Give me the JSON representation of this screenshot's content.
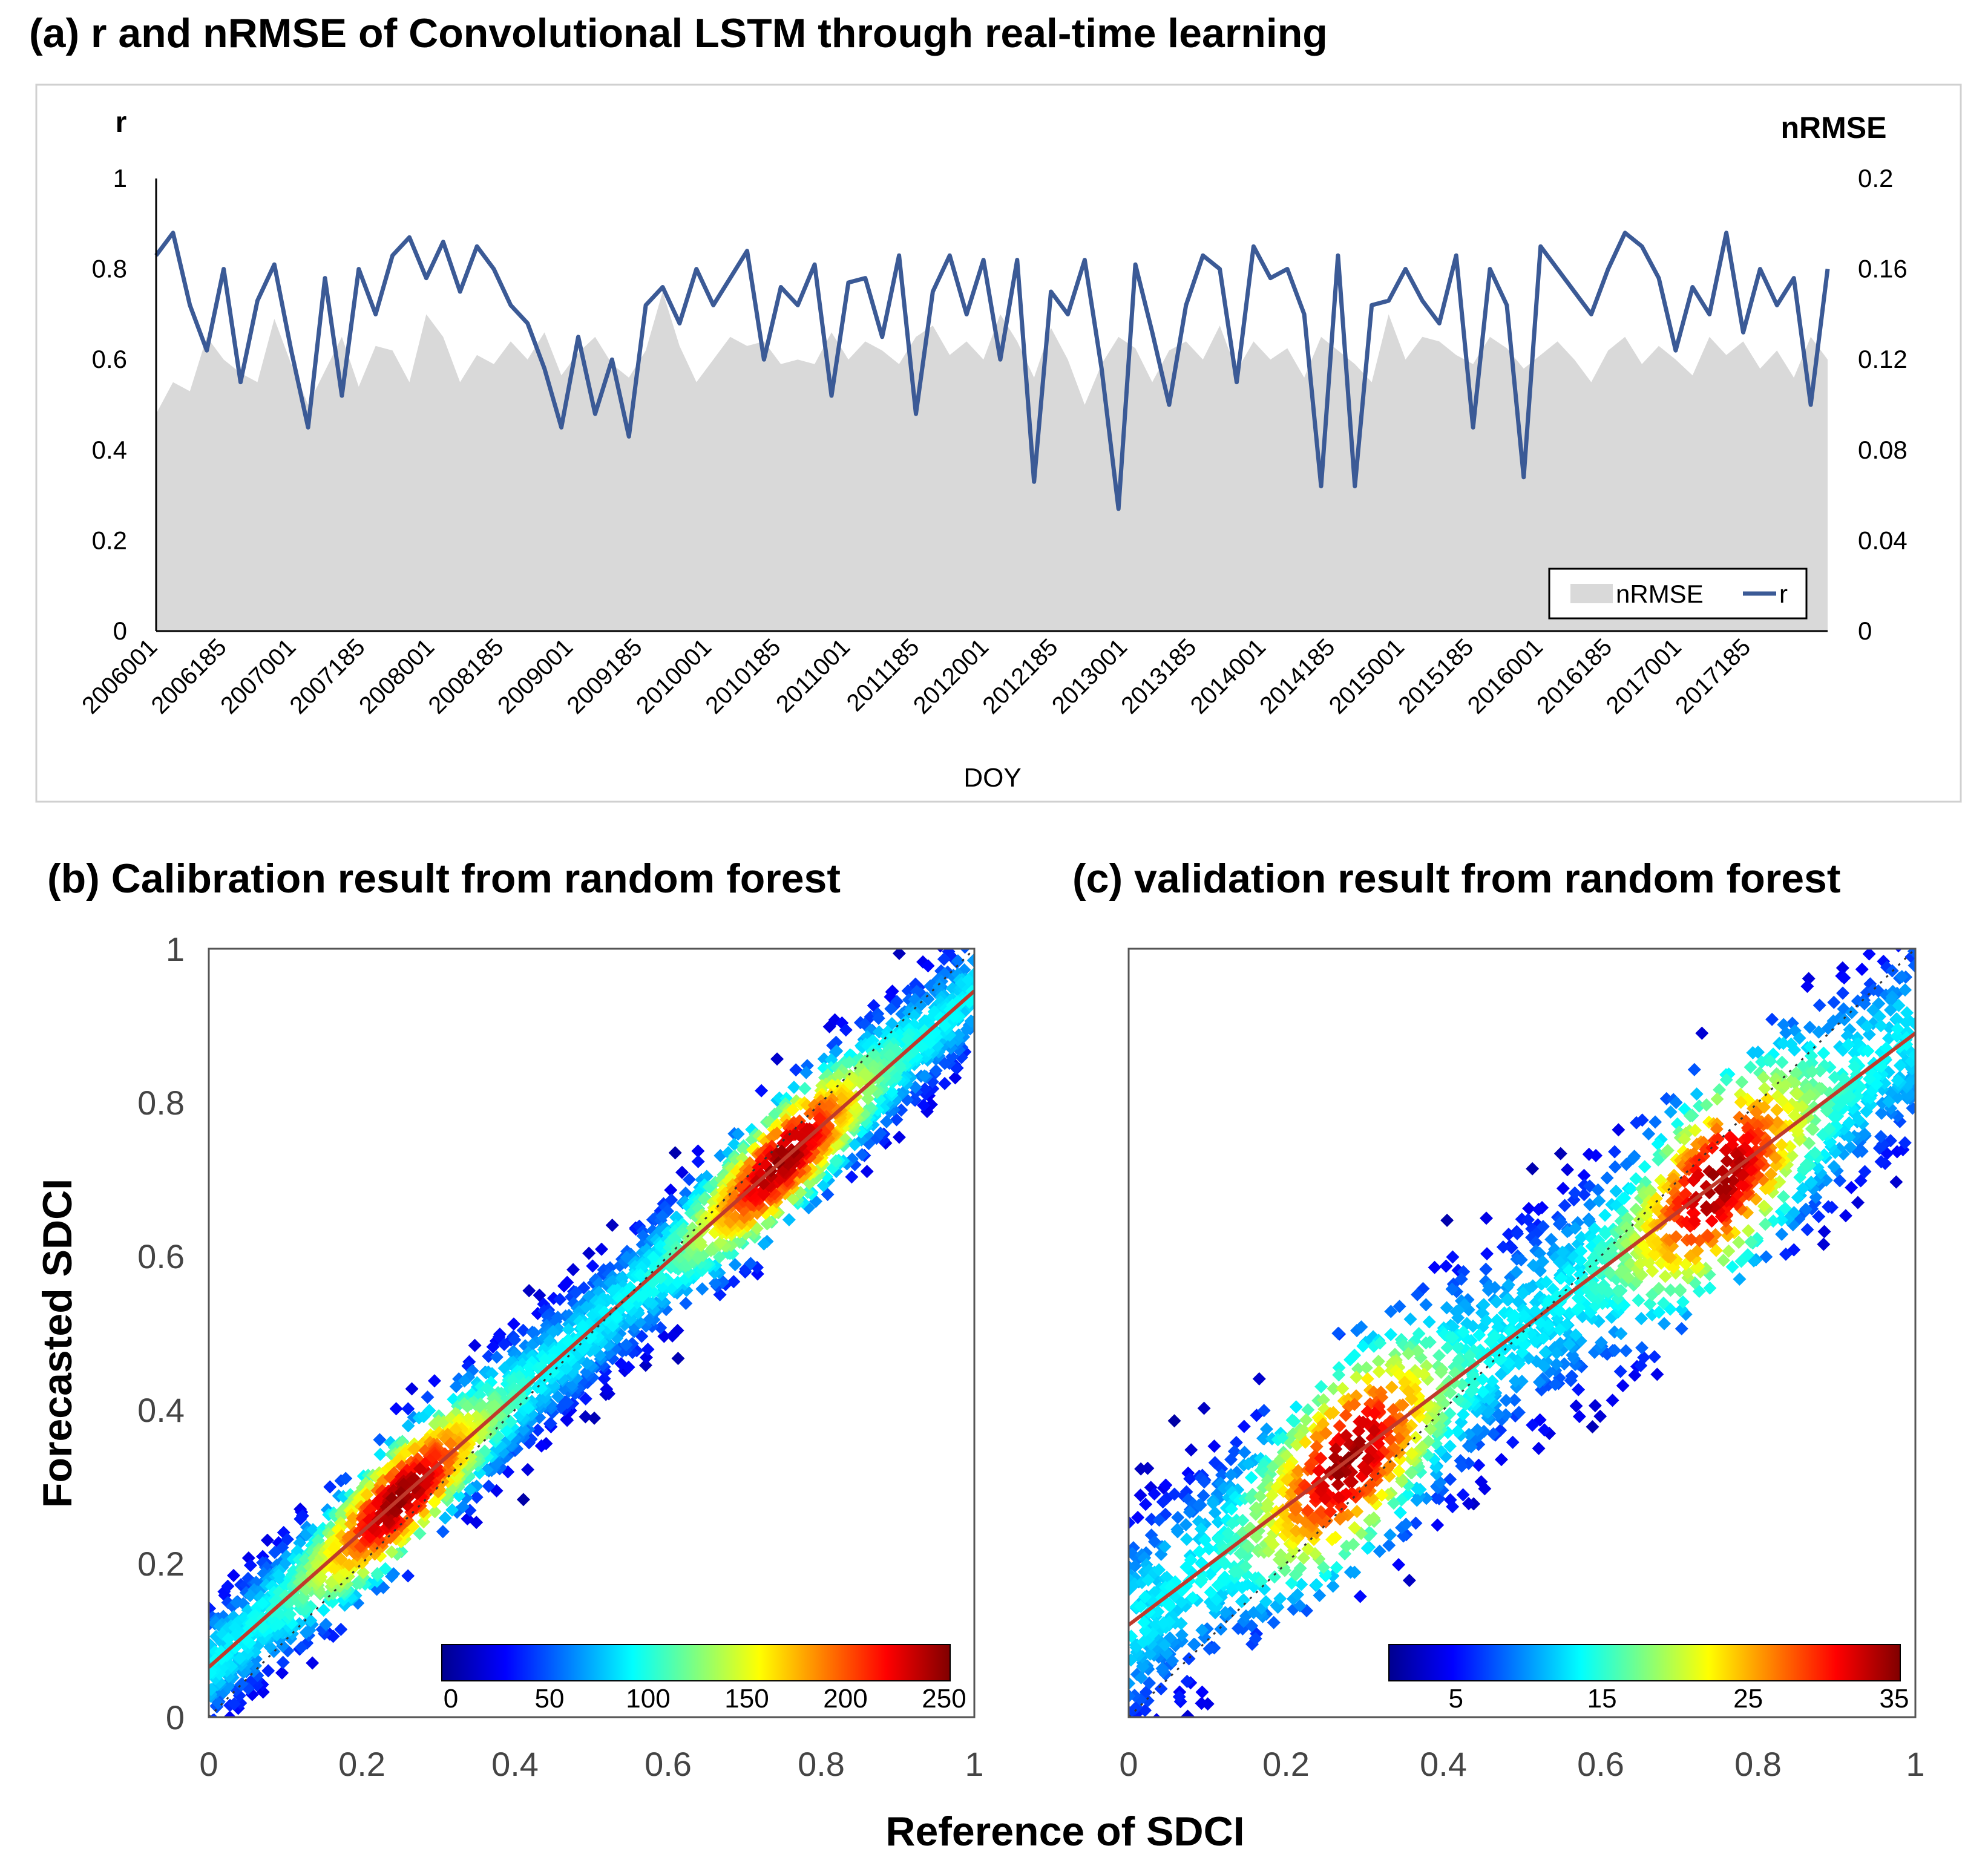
{
  "chart_data": [
    {
      "id": "a",
      "type": "line",
      "title": "(a) r and nRMSE of Convolutional LSTM through real-time learning",
      "xlabel": "DOY",
      "ylabel_left": "r",
      "ylabel_right": "nRMSE",
      "ylim_left": [
        0,
        1
      ],
      "ylim_right": [
        0,
        0.2
      ],
      "yticks_left": [
        "0",
        "0.2",
        "0.4",
        "0.6",
        "0.8",
        "1"
      ],
      "yticks_right": [
        "0",
        "0.04",
        "0.08",
        "0.12",
        "0.16",
        "0.2"
      ],
      "xticks": [
        "2006001",
        "2006185",
        "2007001",
        "2007185",
        "2008001",
        "2008185",
        "2009001",
        "2009185",
        "2010001",
        "2010185",
        "2011001",
        "2011185",
        "2012001",
        "2012185",
        "2013001",
        "2013185",
        "2014001",
        "2014185",
        "2015001",
        "2015185",
        "2016001",
        "2016185",
        "2017001",
        "2017185"
      ],
      "legend": [
        "nRMSE",
        "r"
      ],
      "legend_position": "bottom-right",
      "series": [
        {
          "name": "nRMSE",
          "type": "area",
          "color": "#d9d9d9",
          "values": [
            0.096,
            0.11,
            0.106,
            0.13,
            0.12,
            0.114,
            0.11,
            0.138,
            0.118,
            0.1,
            0.115,
            0.13,
            0.108,
            0.126,
            0.124,
            0.11,
            0.14,
            0.13,
            0.11,
            0.122,
            0.118,
            0.128,
            0.12,
            0.132,
            0.113,
            0.123,
            0.13,
            0.118,
            0.112,
            0.124,
            0.15,
            0.126,
            0.11,
            0.12,
            0.13,
            0.126,
            0.128,
            0.118,
            0.12,
            0.118,
            0.132,
            0.12,
            0.128,
            0.124,
            0.118,
            0.13,
            0.135,
            0.122,
            0.128,
            0.12,
            0.14,
            0.128,
            0.112,
            0.134,
            0.12,
            0.1,
            0.118,
            0.13,
            0.125,
            0.11,
            0.124,
            0.128,
            0.12,
            0.135,
            0.115,
            0.128,
            0.12,
            0.125,
            0.112,
            0.13,
            0.124,
            0.118,
            0.11,
            0.14,
            0.12,
            0.13,
            0.128,
            0.122,
            0.118,
            0.13,
            0.125,
            0.116,
            0.122,
            0.128,
            0.12,
            0.11,
            0.124,
            0.13,
            0.118,
            0.126,
            0.12,
            0.113,
            0.13,
            0.122,
            0.128,
            0.116,
            0.124,
            0.112,
            0.13,
            0.12
          ]
        },
        {
          "name": "r",
          "type": "line",
          "color": "#3b5a96",
          "values": [
            0.83,
            0.88,
            0.72,
            0.62,
            0.8,
            0.55,
            0.73,
            0.81,
            0.62,
            0.45,
            0.78,
            0.52,
            0.8,
            0.7,
            0.83,
            0.87,
            0.78,
            0.86,
            0.75,
            0.85,
            0.8,
            0.72,
            0.68,
            0.58,
            0.45,
            0.65,
            0.48,
            0.6,
            0.43,
            0.72,
            0.76,
            0.68,
            0.8,
            0.72,
            0.78,
            0.84,
            0.6,
            0.76,
            0.72,
            0.81,
            0.52,
            0.77,
            0.78,
            0.65,
            0.83,
            0.48,
            0.75,
            0.83,
            0.7,
            0.82,
            0.6,
            0.82,
            0.33,
            0.75,
            0.7,
            0.82,
            0.58,
            0.27,
            0.81,
            0.66,
            0.5,
            0.72,
            0.83,
            0.8,
            0.55,
            0.85,
            0.78,
            0.8,
            0.7,
            0.32,
            0.83,
            0.32,
            0.72,
            0.73,
            0.8,
            0.73,
            0.68,
            0.83,
            0.45,
            0.8,
            0.72,
            0.34,
            0.85,
            0.8,
            0.75,
            0.7,
            0.8,
            0.88,
            0.85,
            0.78,
            0.62,
            0.76,
            0.7,
            0.88,
            0.66,
            0.8,
            0.72,
            0.78,
            0.5,
            0.8
          ]
        }
      ]
    },
    {
      "id": "b",
      "type": "scatter",
      "title": "(b) Calibration result from random forest",
      "xlabel": "Reference of SDCI",
      "ylabel": "Forecasted SDCI",
      "xlim": [
        0,
        1
      ],
      "ylim": [
        0,
        1
      ],
      "xticks": [
        "0",
        "0.2",
        "0.4",
        "0.6",
        "0.8",
        "1"
      ],
      "yticks": [
        "0",
        "0.2",
        "0.4",
        "0.6",
        "0.8",
        "1"
      ],
      "density_colorbar": {
        "min": 0,
        "max": 250,
        "ticks": [
          "0",
          "50",
          "100",
          "150",
          "200",
          "250"
        ]
      },
      "fit_line": {
        "intercept": 0.065,
        "slope": 0.88,
        "color": "#c0392b"
      },
      "one_to_one_line": true,
      "point_cloud": {
        "x_range": [
          0,
          1
        ],
        "y_spread": 0.09,
        "dense_clusters_x": [
          0.25,
          0.75
        ]
      }
    },
    {
      "id": "c",
      "type": "scatter",
      "title": "(c) validation result from random forest",
      "xlabel": "Reference of SDCI",
      "ylabel": "Forecasted SDCI",
      "xlim": [
        0,
        1
      ],
      "ylim": [
        0,
        1
      ],
      "xticks": [
        "0",
        "0.2",
        "0.4",
        "0.6",
        "0.8",
        "1"
      ],
      "yticks": [],
      "density_colorbar": {
        "min": 0,
        "max": 35,
        "ticks": [
          "5",
          "15",
          "25",
          "35"
        ]
      },
      "fit_line": {
        "intercept": 0.12,
        "slope": 0.77,
        "color": "#c0392b"
      },
      "one_to_one_line": true,
      "point_cloud": {
        "x_range": [
          0,
          1
        ],
        "y_spread": 0.15,
        "dense_clusters_x": [
          0.28,
          0.75
        ]
      }
    }
  ],
  "figure": {
    "shared_xlabel": "Reference of SDCI",
    "shared_ylabel": "Forecasted SDCI"
  }
}
